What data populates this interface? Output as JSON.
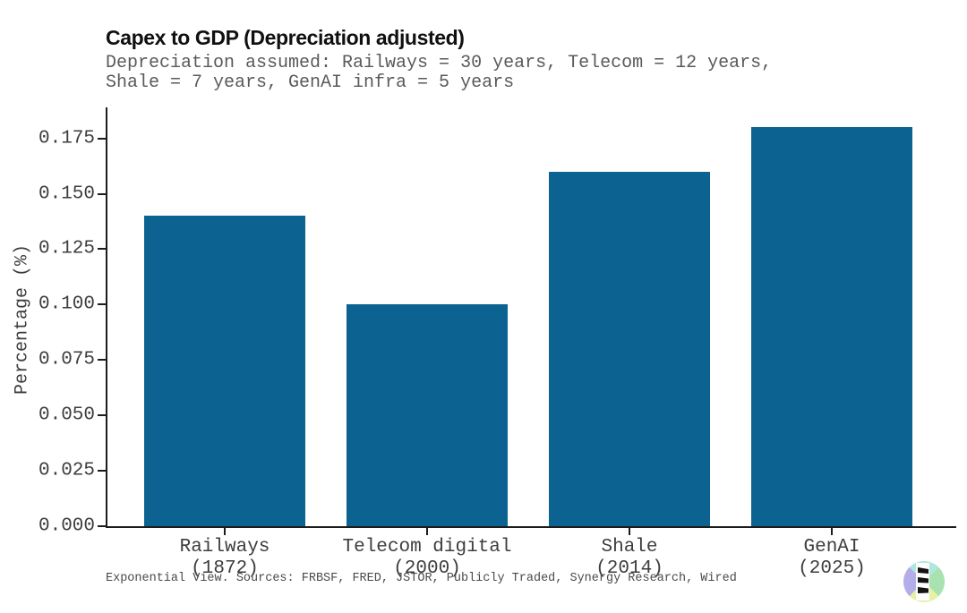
{
  "header": {
    "title": "Capex to GDP (Depreciation adjusted)",
    "subtitle_lines": [
      "Depreciation assumed: Railways = 30 years, Telecom = 12 years,",
      "Shale = 7 years, GenAI infra = 5 years"
    ]
  },
  "chart_data": {
    "type": "bar",
    "title": "Capex to GDP (Depreciation adjusted)",
    "subtitle": "Depreciation assumed: Railways = 30 years, Telecom = 12 years, Shale = 7 years, GenAI infra = 5 years",
    "categories": [
      "Railways (1872)",
      "Telecom digital (2000)",
      "Shale (2014)",
      "GenAI (2025)"
    ],
    "category_lines": [
      [
        "Railways",
        "(1872)"
      ],
      [
        "Telecom digital",
        "(2000)"
      ],
      [
        "Shale",
        "(2014)"
      ],
      [
        "GenAI",
        "(2025)"
      ]
    ],
    "values": [
      0.14,
      0.1,
      0.16,
      0.18
    ],
    "xlabel": "",
    "ylabel": "Percentage (%)",
    "yticks": [
      "0.000",
      "0.025",
      "0.050",
      "0.075",
      "0.100",
      "0.125",
      "0.150",
      "0.175"
    ],
    "ylim": [
      0,
      0.189
    ],
    "bar_color": "#0c6392",
    "grid": false,
    "legend": "none"
  },
  "footer": {
    "source": "Exponential View. Sources: FRBSF, FRED, JSTOR, Publicly Traded, Synergy Research, Wired"
  },
  "logo": {
    "name": "Exponential View logo",
    "colors": {
      "top": "#aee7dd",
      "left": "#b3aeea",
      "right": "#a8e2ae",
      "bottom": "#e5f2a5",
      "band": "#fdfdfd",
      "glyph": "#141414"
    }
  }
}
